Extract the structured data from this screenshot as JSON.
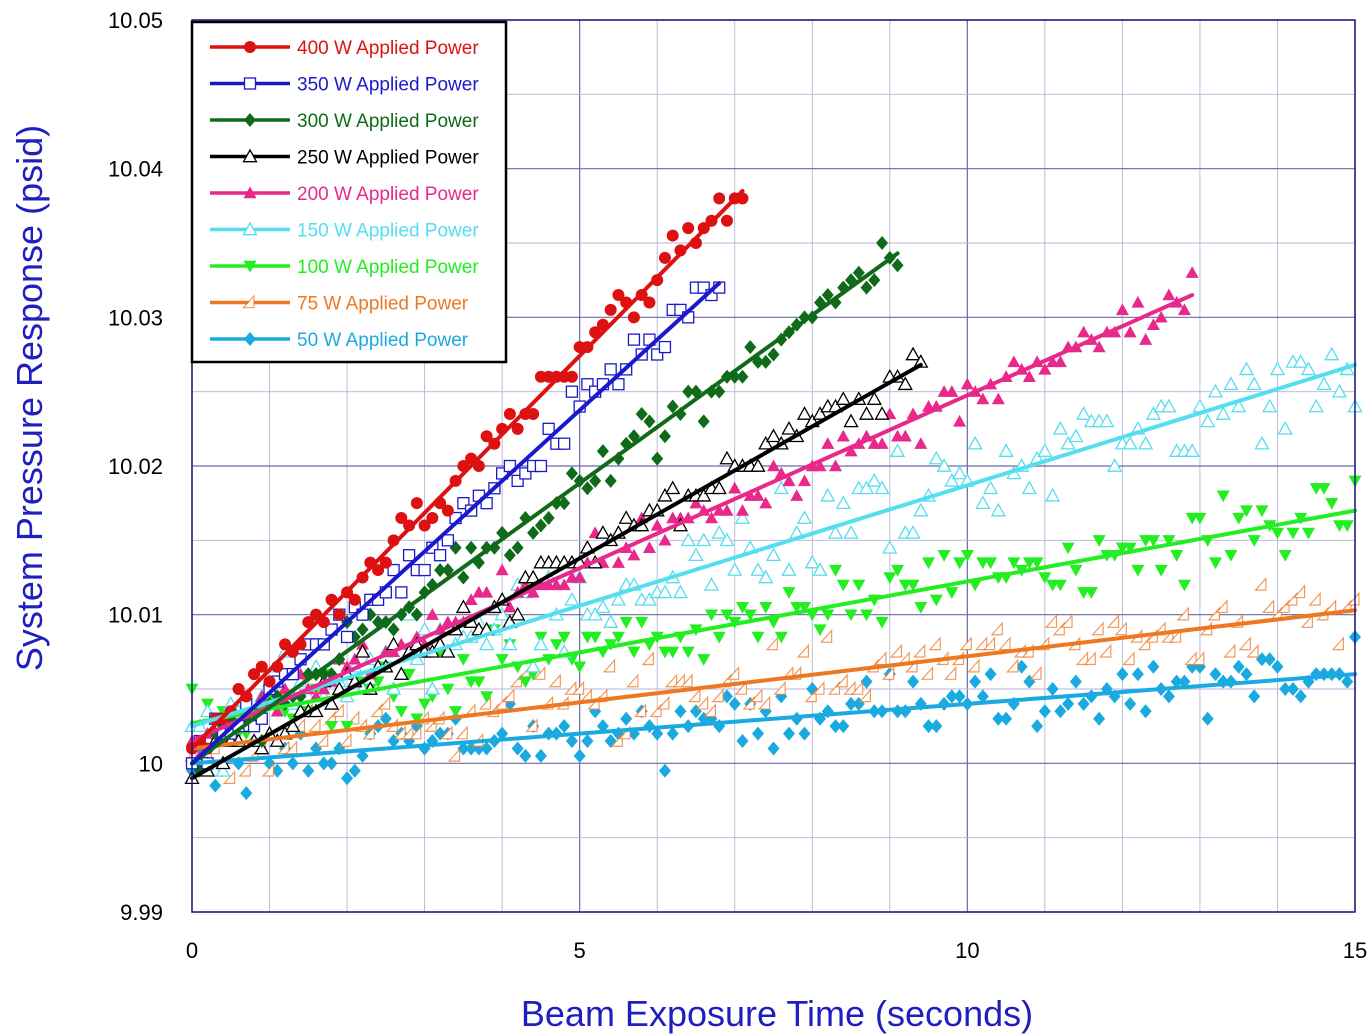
{
  "chart_data": {
    "type": "scatter",
    "xlabel": "Beam Exposure Time (seconds)",
    "ylabel": "System Pressure Response (psid)",
    "xlim": [
      0,
      15
    ],
    "ylim": [
      9.99,
      10.05
    ],
    "xticks": [
      "0",
      "5",
      "10",
      "15"
    ],
    "yticks": [
      "9.99",
      "10",
      "10.01",
      "10.02",
      "10.03",
      "10.04",
      "10.05"
    ],
    "grid": true,
    "legend_position": "top-left",
    "series": [
      {
        "name": "400 W Applied Power",
        "color": "#dd1111",
        "marker": "circle-filled",
        "fit": [
          [
            0,
            10.001
          ],
          [
            7.1,
            10.0385
          ]
        ],
        "x_range": [
          0,
          7.1
        ],
        "spread": 0.0011
      },
      {
        "name": "350 W Applied Power",
        "color": "#1a1acc",
        "marker": "square-open",
        "fit": [
          [
            0,
            10.0
          ],
          [
            6.8,
            10.0323
          ]
        ],
        "x_range": [
          0,
          6.8
        ],
        "spread": 0.0012
      },
      {
        "name": "300 W Applied Power",
        "color": "#0f6b1a",
        "marker": "diamond-filled",
        "fit": [
          [
            0,
            10.0
          ],
          [
            9.1,
            10.0343
          ]
        ],
        "x_range": [
          0,
          9.1
        ],
        "spread": 0.0013
      },
      {
        "name": "250 W Applied Power",
        "color": "#000000",
        "marker": "triangle-open",
        "fit": [
          [
            0,
            9.999
          ],
          [
            9.4,
            10.0268
          ]
        ],
        "x_range": [
          0,
          9.4
        ],
        "spread": 0.0012
      },
      {
        "name": "200 W Applied Power",
        "color": "#e8288a",
        "marker": "triangle-filled",
        "fit": [
          [
            0,
            10.0015
          ],
          [
            12.9,
            10.0315
          ]
        ],
        "x_range": [
          0,
          12.9
        ],
        "spread": 0.0013
      },
      {
        "name": "150 W Applied Power",
        "color": "#55ddf0",
        "marker": "triangle-open",
        "fit": [
          [
            0,
            10.0025
          ],
          [
            15,
            10.0268
          ]
        ],
        "x_range": [
          0,
          15
        ],
        "spread": 0.0022
      },
      {
        "name": "100 W Applied Power",
        "color": "#22ee22",
        "marker": "triangle-down-filled",
        "fit": [
          [
            0,
            10.0027
          ],
          [
            15,
            10.017
          ]
        ],
        "x_range": [
          0,
          15
        ],
        "spread": 0.0018
      },
      {
        "name": "75 W Applied Power",
        "color": "#ee7722",
        "marker": "halftriangle-open",
        "fit": [
          [
            0,
            10.001
          ],
          [
            15,
            10.0103
          ]
        ],
        "x_range": [
          0,
          15
        ],
        "spread": 0.0017
      },
      {
        "name": "50 W Applied Power",
        "color": "#1aaae0",
        "marker": "diamond-filled",
        "fit": [
          [
            0,
            10.0
          ],
          [
            15,
            10.006
          ]
        ],
        "x_range": [
          0,
          15
        ],
        "spread": 0.0016
      }
    ]
  }
}
